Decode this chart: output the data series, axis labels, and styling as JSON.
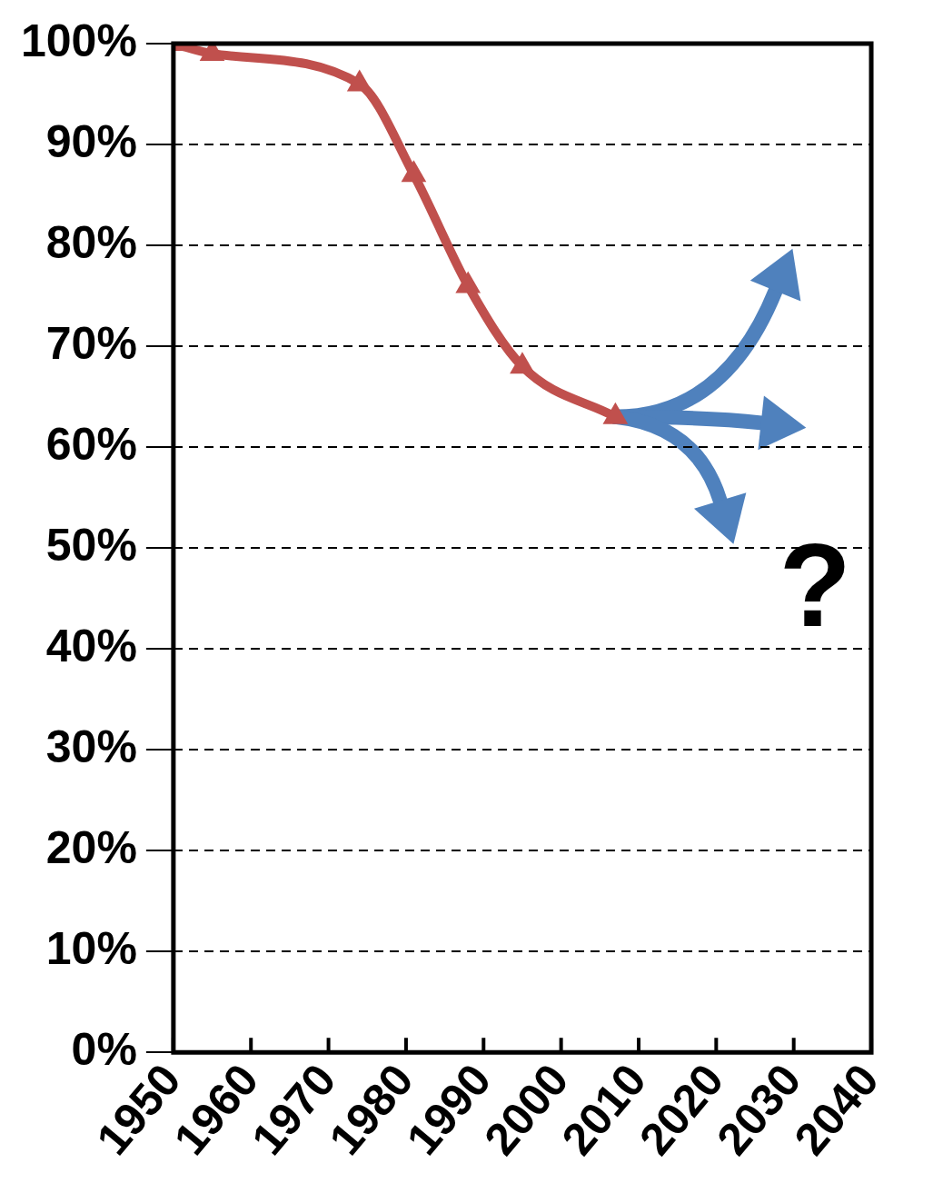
{
  "chart_data": {
    "type": "line",
    "x": [
      1950,
      1955,
      1974,
      1981,
      1988,
      1995,
      2007
    ],
    "series": [
      {
        "color": "#c0504d",
        "values": [
          100,
          99,
          96,
          87,
          76,
          68,
          63
        ]
      }
    ],
    "xlim": [
      1950,
      2040
    ],
    "xticks": [
      1950,
      1960,
      1970,
      1980,
      1990,
      2000,
      2010,
      2020,
      2030,
      2040
    ],
    "ylim": [
      0,
      100
    ],
    "yticks": [
      {
        "value": 0,
        "label": "0%"
      },
      {
        "value": 10,
        "label": "10%"
      },
      {
        "value": 20,
        "label": "20%"
      },
      {
        "value": 30,
        "label": "30%"
      },
      {
        "value": 40,
        "label": "40%"
      },
      {
        "value": 50,
        "label": "50%"
      },
      {
        "value": 60,
        "label": "60%"
      },
      {
        "value": 70,
        "label": "70%"
      },
      {
        "value": 80,
        "label": "80%"
      },
      {
        "value": 90,
        "label": "90%"
      },
      {
        "value": 100,
        "label": "100%"
      }
    ],
    "grid": "y",
    "marker": "triangle",
    "line_style": "solid",
    "legend": false,
    "annotations": [
      "?"
    ]
  }
}
